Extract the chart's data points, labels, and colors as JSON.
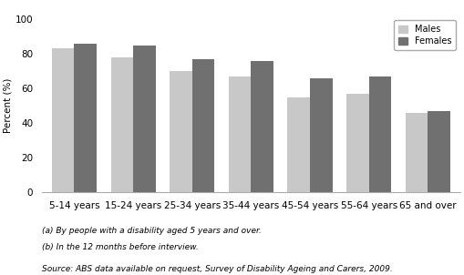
{
  "categories": [
    "5-14 years",
    "15-24 years",
    "25-34 years",
    "35-44 years",
    "45-54 years",
    "55-64 years",
    "65 and over"
  ],
  "males": [
    83,
    78,
    70,
    67,
    55,
    57,
    46
  ],
  "females": [
    86,
    85,
    77,
    76,
    66,
    67,
    47
  ],
  "male_color": "#c8c8c8",
  "female_color": "#707070",
  "ylim": [
    0,
    100
  ],
  "yticks": [
    0,
    20,
    40,
    60,
    80,
    100
  ],
  "ylabel": "Percent (%)",
  "legend_labels": [
    "Males",
    "Females"
  ],
  "bar_width": 0.38,
  "footnote1": "(a) By people with a disability aged 5 years and over.",
  "footnote2": "(b) In the 12 months before interview.",
  "source": "Source: ABS data available on request, Survey of Disability Ageing and Carers, 2009.",
  "grid_color": "#ffffff",
  "bg_color": "#ffffff",
  "axes_bg": "#ffffff",
  "spine_color": "#aaaaaa"
}
